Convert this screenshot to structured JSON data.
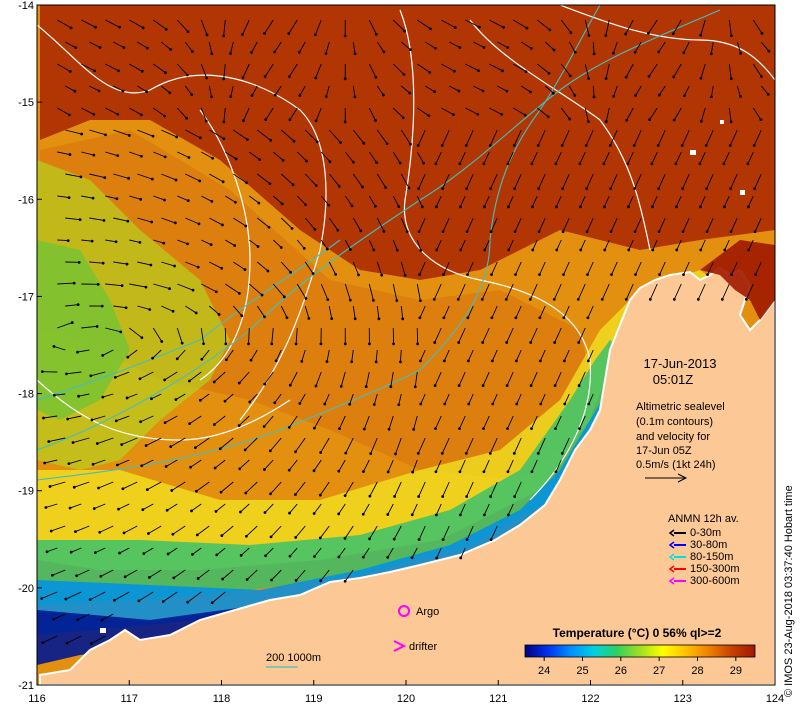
{
  "map": {
    "lon_ticks": [
      "116",
      "117",
      "118",
      "119",
      "120",
      "121",
      "122",
      "123",
      "124"
    ],
    "lat_ticks": [
      "-14",
      "-15",
      "-16",
      "-17",
      "-18",
      "-19",
      "-20",
      "-21"
    ],
    "lon_range": [
      116,
      124
    ],
    "lat_range": [
      -21,
      -14
    ],
    "land_color": "#fcc896",
    "ocean_warm_color": "#a01800",
    "contour_color": "#ffffff",
    "isobath_color": "#40c0c0"
  },
  "annotations": {
    "date": "17-Jun-2013",
    "time": "05:01Z",
    "sealevel_line1": "Altimetric sealevel",
    "sealevel_line2": "(0.1m contours)",
    "sealevel_line3": "and velocity for",
    "sealevel_line4": "17-Jun 05Z",
    "scale_text": "0.5m/s (1kt 24h)",
    "anmn_title": "ANMN 12h av.",
    "argo_label": "Argo",
    "drifter_label": "drifter",
    "isobath_label": "200  1000m",
    "credit": "© IMOS 23-Aug-2018 03:37:40 Hobart time"
  },
  "anmn_legend": [
    {
      "label": "0-30m",
      "color": "#000000"
    },
    {
      "label": "30-80m",
      "color": "#0000ff"
    },
    {
      "label": "80-150m",
      "color": "#00e0e0"
    },
    {
      "label": "150-300m",
      "color": "#ff0000"
    },
    {
      "label": "300-600m",
      "color": "#ff00ff"
    }
  ],
  "colorbar": {
    "title": "Temperature (°C) 0 56% ql>=2",
    "ticks": [
      "24",
      "25",
      "26",
      "27",
      "28",
      "29"
    ],
    "range": [
      23.5,
      29.5
    ],
    "colors": [
      "#000080",
      "#0044ff",
      "#00c0ff",
      "#20d080",
      "#80e020",
      "#ffff00",
      "#ffc000",
      "#e07000",
      "#c03800",
      "#a01800"
    ]
  }
}
